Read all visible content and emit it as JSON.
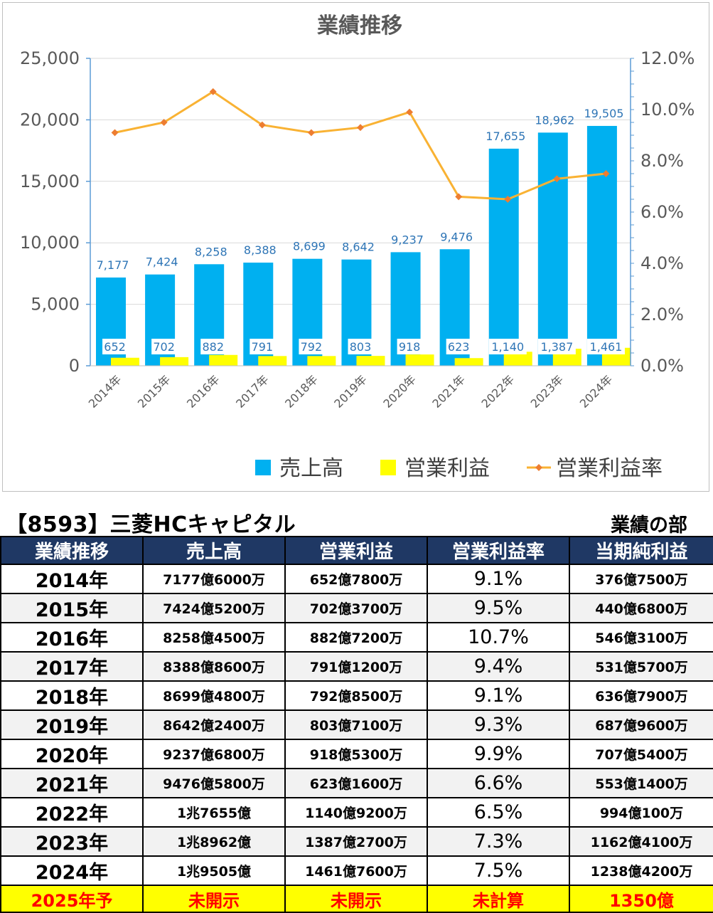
{
  "chart_data": {
    "type": "bar",
    "title": "業績推移",
    "categories": [
      "2014年",
      "2015年",
      "2016年",
      "2017年",
      "2018年",
      "2019年",
      "2020年",
      "2021年",
      "2022年",
      "2023年",
      "2024年"
    ],
    "series": [
      {
        "name": "売上高",
        "kind": "bar",
        "axis": "left",
        "color": "#00b0f0",
        "values": [
          7177,
          7424,
          8258,
          8388,
          8699,
          8642,
          9237,
          9476,
          17655,
          18962,
          19505
        ],
        "labels": [
          "7,177",
          "7,424",
          "8,258",
          "8,388",
          "8,699",
          "8,642",
          "9,237",
          "9,476",
          "17,655",
          "18,962",
          "19,505"
        ]
      },
      {
        "name": "営業利益",
        "kind": "bar",
        "axis": "left",
        "color": "#ffff00",
        "values": [
          652,
          702,
          882,
          791,
          792,
          803,
          918,
          623,
          1140,
          1387,
          1461
        ],
        "labels": [
          "652",
          "702",
          "882",
          "791",
          "792",
          "803",
          "918",
          "623",
          "1,140",
          "1,387",
          "1,461"
        ]
      },
      {
        "name": "営業利益率",
        "kind": "line",
        "axis": "right",
        "color": "#f9b233",
        "values": [
          9.1,
          9.5,
          10.7,
          9.4,
          9.1,
          9.3,
          9.9,
          6.6,
          6.5,
          7.3,
          7.5
        ]
      }
    ],
    "y_left": {
      "min": 0,
      "max": 25000,
      "ticks": [
        "0",
        "5,000",
        "10,000",
        "15,000",
        "20,000",
        "25,000"
      ]
    },
    "y_right": {
      "min": 0,
      "max": 12,
      "ticks": [
        "0.0%",
        "2.0%",
        "4.0%",
        "6.0%",
        "8.0%",
        "10.0%",
        "12.0%"
      ]
    },
    "grid": true,
    "legend": "bottom"
  },
  "header": {
    "company": "【8593】三菱HCキャピタル",
    "section": "業績の部"
  },
  "table": {
    "columns": [
      "業績推移",
      "売上高",
      "営業利益",
      "営業利益率",
      "当期純利益"
    ],
    "rows": [
      [
        "2014年",
        "7177億6000万",
        "652億7800万",
        "9.1%",
        "376億7500万"
      ],
      [
        "2015年",
        "7424億5200万",
        "702億3700万",
        "9.5%",
        "440億6800万"
      ],
      [
        "2016年",
        "8258億4500万",
        "882億7200万",
        "10.7%",
        "546億3100万"
      ],
      [
        "2017年",
        "8388億8600万",
        "791億1200万",
        "9.4%",
        "531億5700万"
      ],
      [
        "2018年",
        "8699億4800万",
        "792億8500万",
        "9.1%",
        "636億7900万"
      ],
      [
        "2019年",
        "8642億2400万",
        "803億7100万",
        "9.3%",
        "687億9600万"
      ],
      [
        "2020年",
        "9237億6800万",
        "918億5300万",
        "9.9%",
        "707億5400万"
      ],
      [
        "2021年",
        "9476億5800万",
        "623億1600万",
        "6.6%",
        "553億1400万"
      ],
      [
        "2022年",
        "1兆7655億",
        "1140億9200万",
        "6.5%",
        "994億100万"
      ],
      [
        "2023年",
        "1兆8962億",
        "1387億2700万",
        "7.3%",
        "1162億4100万"
      ],
      [
        "2024年",
        "1兆9505億",
        "1461億7600万",
        "7.5%",
        "1238億4200万"
      ]
    ],
    "forecast": [
      "2025年予",
      "未開示",
      "未開示",
      "未計算",
      "1350億"
    ]
  }
}
